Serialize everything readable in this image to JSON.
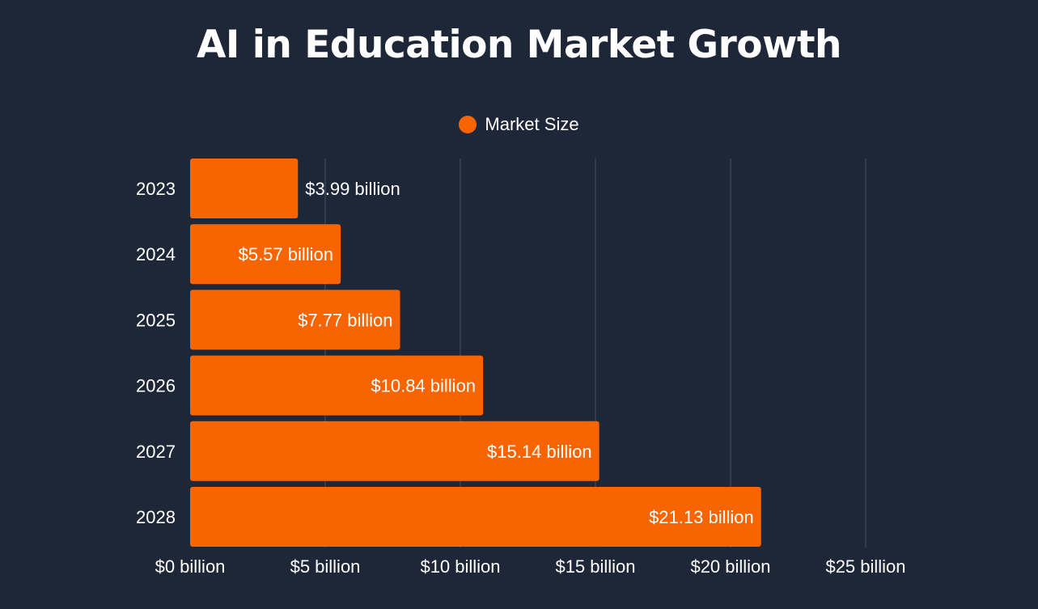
{
  "chart_data": {
    "type": "bar",
    "orientation": "horizontal",
    "title": "AI in Education Market Growth",
    "legend": {
      "position": "top-center"
    },
    "categories": [
      "2023",
      "2024",
      "2025",
      "2026",
      "2027",
      "2028"
    ],
    "series": [
      {
        "name": "Market Size",
        "color": "#f86400",
        "values": [
          3.99,
          5.57,
          7.77,
          10.84,
          15.14,
          21.13
        ],
        "labels": [
          "$3.99 billion",
          "$5.57 billion",
          "$7.77 billion",
          "$10.84 billion",
          "$15.14 billion",
          "$21.13 billion"
        ]
      }
    ],
    "xlim": [
      0,
      25
    ],
    "x_ticks": [
      0,
      5,
      10,
      15,
      20,
      25
    ],
    "x_tick_labels": [
      "$0 billion",
      "$5 billion",
      "$10 billion",
      "$15 billion",
      "$20 billion",
      "$25 billion"
    ],
    "grid": true,
    "colors": {
      "background": "#1e2738",
      "bar": "#f86400",
      "text": "#ffffff",
      "grid": "#3a4456"
    }
  }
}
